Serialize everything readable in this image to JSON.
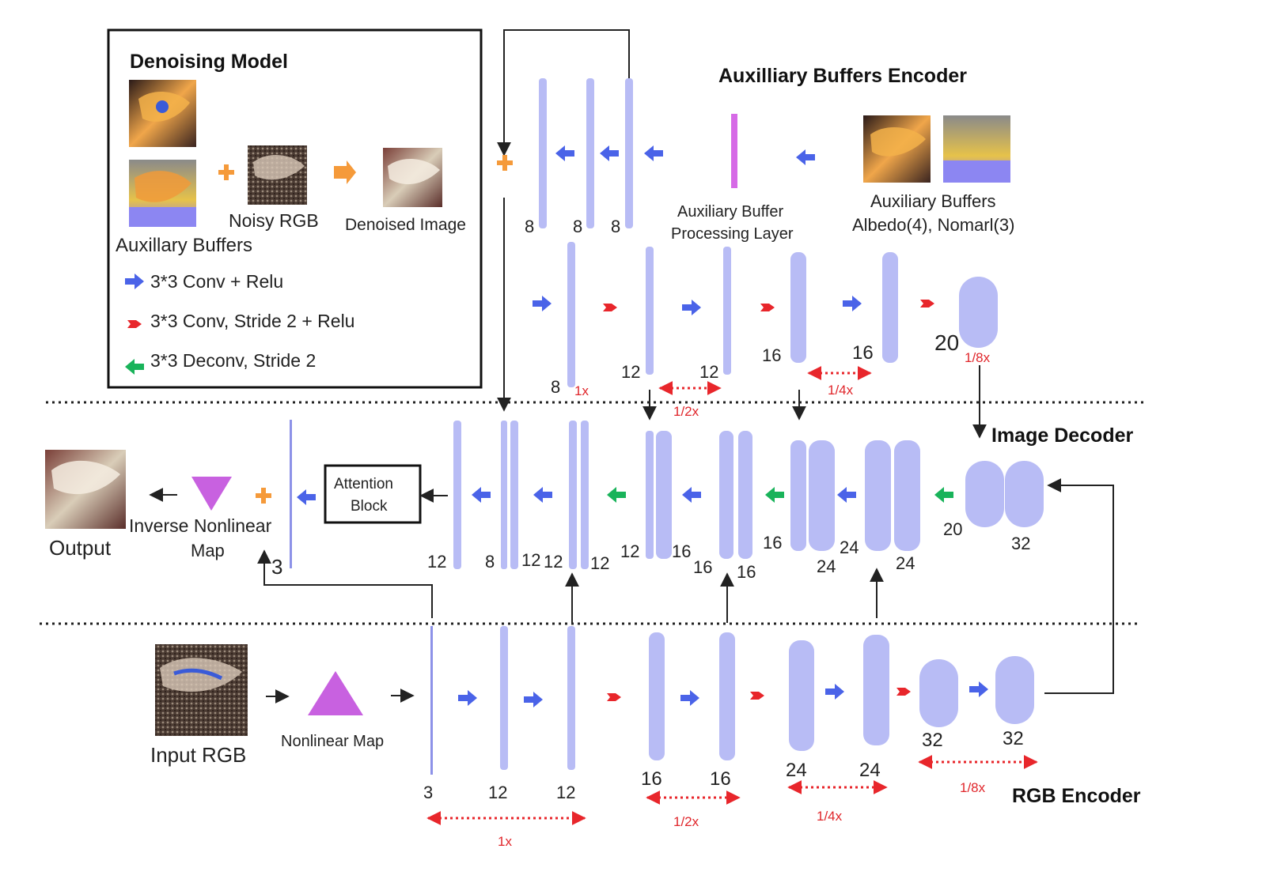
{
  "sections": {
    "aux_encoder": "Auxilliary Buffers Encoder",
    "image_decoder": "Image Decoder",
    "rgb_encoder": "RGB Encoder"
  },
  "legend": {
    "title": "Denoising Model",
    "aux_buffers": "Auxillary Buffers",
    "noisy_rgb": "Noisy RGB",
    "denoised_image": "Denoised Image",
    "conv_relu": "3*3 Conv + Relu",
    "conv_stride": "3*3 Conv, Stride 2 + Relu",
    "deconv": "3*3 Deconv, Stride 2"
  },
  "aux": {
    "ch_8a": "8",
    "ch_8b": "8",
    "ch_8c": "8",
    "processing_layer_1": "Auxiliary Buffer",
    "processing_layer_2": "Processing Layer",
    "buffers_1": "Auxiliary Buffers",
    "buffers_2": "Albedo(4), Nomarl(3)",
    "row2": {
      "ch_8": "8",
      "ch_12a": "12",
      "ch_12b": "12",
      "ch_16a": "16",
      "ch_16b": "16",
      "ch_20": "20",
      "s_1x": "1x",
      "s_half": "1/2x",
      "s_quarter": "1/4x",
      "s_eighth": "1/8x"
    }
  },
  "decoder": {
    "output": "Output",
    "inverse_map_1": "Inverse Nonlinear",
    "inverse_map_2": "Map",
    "attention_1": "Attention",
    "attention_2": "Block",
    "ch_3": "3",
    "ch_12a": "12",
    "ch_8": "8",
    "ch_12b": "12",
    "ch_12c": "12",
    "ch_12d": "12",
    "ch_12e": "12",
    "ch_16a": "16",
    "ch_16b": "16",
    "ch_16c": "16",
    "ch_16d": "16",
    "ch_24a": "24",
    "ch_24b": "24",
    "ch_24c": "24",
    "ch_20": "20",
    "ch_32": "32"
  },
  "rgb": {
    "input": "Input RGB",
    "nonlinear_map": "Nonlinear Map",
    "ch_3": "3",
    "ch_12a": "12",
    "ch_12b": "12",
    "ch_16a": "16",
    "ch_16b": "16",
    "ch_24a": "24",
    "ch_24b": "24",
    "ch_32a": "32",
    "ch_32b": "32",
    "s_1x": "1x",
    "s_half": "1/2x",
    "s_quarter": "1/4x",
    "s_eighth": "1/8x"
  },
  "colors": {
    "layer": "#b8bcf5",
    "conv_arrow": "#4a63e8",
    "stride_arrow": "#e8262b",
    "deconv_arrow": "#19b35a",
    "plus": "#f59a3a",
    "nonlinear_map": "#c861e0",
    "processing_layer": "#d66ae6"
  }
}
